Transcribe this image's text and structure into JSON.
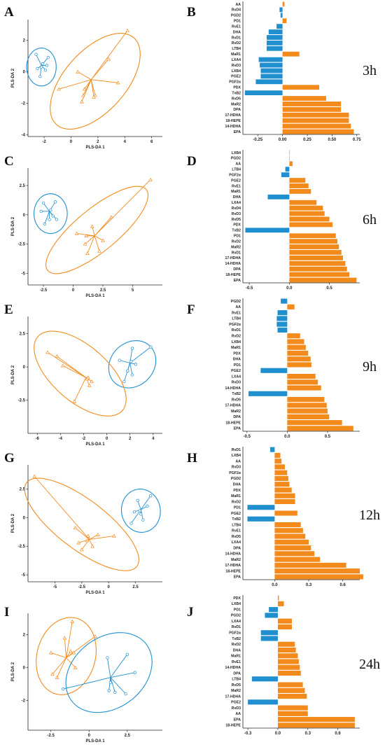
{
  "colors": {
    "orange": "#f28a1c",
    "blue": "#1f8fd0",
    "axis": "#222222"
  },
  "chart_data": [
    {
      "letter": "A",
      "type": "scatter",
      "xlabel": "PLS-DA 1",
      "ylabel": "PLS-DA 2",
      "xlim": [
        -3.2,
        6.8
      ],
      "ylim": [
        -4.1,
        3.3
      ],
      "xticks": [
        -2,
        0,
        2,
        4,
        6
      ],
      "yticks": [
        -4,
        -2,
        0,
        2
      ],
      "groups": [
        {
          "color": "blue",
          "marker": "circle",
          "centroid": [
            -2.2,
            0.4
          ],
          "points": [
            [
              -2.6,
              1.1
            ],
            [
              -1.7,
              0.9
            ],
            [
              -2.1,
              0.5
            ],
            [
              -2.5,
              0.2
            ],
            [
              -1.9,
              0.1
            ],
            [
              -2.3,
              -0.3
            ],
            [
              -2.2,
              0.3
            ],
            [
              -1.8,
              0.4
            ]
          ],
          "ellipse": {
            "cx": -2.2,
            "cy": 0.3,
            "rx": 1.1,
            "ry": 1.2,
            "angle": 0
          }
        },
        {
          "color": "orange",
          "marker": "triangle",
          "centroid": [
            1.5,
            -0.5
          ],
          "points": [
            [
              4.2,
              2.6
            ],
            [
              2.8,
              0.8
            ],
            [
              0.5,
              0.0
            ],
            [
              -0.9,
              -1.1
            ],
            [
              0.8,
              -1.9
            ],
            [
              1.8,
              -1.5
            ],
            [
              1.7,
              -1.6
            ],
            [
              3.5,
              -0.7
            ],
            [
              1.0,
              -1.1
            ],
            [
              0.9,
              -1.5
            ]
          ],
          "ellipse": {
            "cx": 1.8,
            "cy": -0.6,
            "rx": 4.0,
            "ry": 2.1,
            "angle": 40
          }
        }
      ]
    },
    {
      "letter": "B",
      "type": "bar",
      "time": "3h",
      "xlim": [
        -0.4,
        0.78
      ],
      "xticks": [
        -0.25,
        0,
        0.25,
        0.5,
        0.75
      ],
      "categories": [
        "AA",
        "RvD4",
        "PGD2",
        "PD1",
        "RvE1",
        "DHA",
        "RvD1",
        "RvD2",
        "LTB4",
        "MaR1",
        "LXA4",
        "RvD3",
        "LXB4",
        "PGE2",
        "PGF2α",
        "PDX",
        "TxB2",
        "RvD5",
        "MaR2",
        "DPA",
        "17-HDHA",
        "18-HEPE",
        "14-HDHA",
        "EPA"
      ],
      "values": [
        0.02,
        -0.03,
        -0.02,
        0.04,
        -0.06,
        -0.14,
        -0.16,
        -0.16,
        -0.16,
        0.17,
        -0.24,
        -0.23,
        -0.22,
        -0.22,
        -0.27,
        0.37,
        -0.38,
        0.44,
        0.59,
        0.59,
        0.67,
        0.67,
        0.69,
        0.72
      ]
    },
    {
      "letter": "C",
      "type": "scatter",
      "xlabel": "PLS-DA 1",
      "ylabel": "PLS-DA 2",
      "xlim": [
        -3.8,
        7.5
      ],
      "ylim": [
        -6.0,
        4.0
      ],
      "xticks": [
        -2.5,
        0,
        2.5,
        5
      ],
      "yticks": [
        -5,
        -2.5,
        0,
        2.5
      ],
      "groups": [
        {
          "color": "blue",
          "marker": "circle",
          "centroid": [
            -2.0,
            0.3
          ],
          "points": [
            [
              -2.5,
              1.0
            ],
            [
              -1.5,
              1.1
            ],
            [
              -2.7,
              0.3
            ],
            [
              -1.9,
              0.4
            ],
            [
              -2.0,
              -0.4
            ],
            [
              -1.4,
              -0.4
            ],
            [
              -2.4,
              -0.8
            ],
            [
              -1.7,
              -0.1
            ]
          ],
          "ellipse": {
            "cx": -1.9,
            "cy": 0.1,
            "rx": 1.4,
            "ry": 1.7,
            "angle": 0
          }
        },
        {
          "color": "orange",
          "marker": "triangle",
          "centroid": [
            1.8,
            -1.8
          ],
          "points": [
            [
              6.5,
              3.0
            ],
            [
              3.2,
              -0.2
            ],
            [
              0.3,
              -1.6
            ],
            [
              1.0,
              -2.5
            ],
            [
              1.2,
              -3.3
            ],
            [
              2.2,
              -3.1
            ],
            [
              2.5,
              -2.2
            ],
            [
              1.6,
              -1.0
            ],
            [
              1.1,
              -1.8
            ]
          ],
          "ellipse": {
            "cx": 2.0,
            "cy": -1.3,
            "rx": 5.4,
            "ry": 1.8,
            "angle": 40
          }
        }
      ]
    },
    {
      "letter": "D",
      "type": "bar",
      "time": "6h",
      "xlim": [
        -0.58,
        0.88
      ],
      "xticks": [
        -0.5,
        0,
        0.5
      ],
      "categories": [
        "LXB4",
        "PGD2",
        "AA",
        "LTB4",
        "PGF2α",
        "PGE2",
        "RvE1",
        "MaR1",
        "DHA",
        "LXA4",
        "RvD4",
        "RvD3",
        "RvD5",
        "PDX",
        "TxB2",
        "PD1",
        "RvD2",
        "MaR2",
        "RvD1",
        "17-HDHA",
        "14-HDHA",
        "DPA",
        "18-HEPE",
        "EPA"
      ],
      "values": [
        0.005,
        0.005,
        0.04,
        -0.05,
        -0.1,
        0.2,
        0.24,
        0.27,
        -0.27,
        0.34,
        0.42,
        0.44,
        0.5,
        0.54,
        -0.55,
        0.58,
        0.6,
        0.62,
        0.65,
        0.67,
        0.7,
        0.72,
        0.75,
        0.84
      ]
    },
    {
      "letter": "E",
      "type": "scatter",
      "xlabel": "PLS-DA 1",
      "ylabel": "PLS-DA 2",
      "xlim": [
        -6.8,
        4.8
      ],
      "ylim": [
        -5.0,
        3.8
      ],
      "xticks": [
        -6,
        -4,
        -2,
        0,
        2,
        4
      ],
      "yticks": [
        -2.5,
        0,
        2.5
      ],
      "groups": [
        {
          "color": "blue",
          "marker": "circle",
          "centroid": [
            2.0,
            0.3
          ],
          "points": [
            [
              3.8,
              1.5
            ],
            [
              2.2,
              1.4
            ],
            [
              1.1,
              0.5
            ],
            [
              2.1,
              0.4
            ],
            [
              1.8,
              -0.3
            ],
            [
              2.2,
              -0.6
            ],
            [
              1.5,
              -1.1
            ],
            [
              2.5,
              0.2
            ]
          ],
          "ellipse": {
            "cx": 2.2,
            "cy": 0.2,
            "rx": 2.1,
            "ry": 1.7,
            "angle": 25
          }
        },
        {
          "color": "orange",
          "marker": "triangle",
          "centroid": [
            -1.8,
            -0.8
          ],
          "points": [
            [
              -5.1,
              1.1
            ],
            [
              -4.3,
              0.8
            ],
            [
              -3.8,
              0.1
            ],
            [
              -1.6,
              -0.8
            ],
            [
              -1.5,
              -1.4
            ],
            [
              -1.3,
              -1.1
            ],
            [
              -2.8,
              -2.6
            ],
            [
              -1.7,
              -0.9
            ]
          ],
          "ellipse": {
            "cx": -2.3,
            "cy": -0.5,
            "rx": 4.6,
            "ry": 2.2,
            "angle": -35
          }
        }
      ]
    },
    {
      "letter": "F",
      "type": "bar",
      "time": "9h",
      "xlim": [
        -0.55,
        0.9
      ],
      "xticks": [
        -0.5,
        0,
        0.5
      ],
      "categories": [
        "PGD2",
        "AA",
        "RvE1",
        "LTB4",
        "PGF2α",
        "RvD1",
        "RvD2",
        "LXB4",
        "MaR1",
        "PDX",
        "DHA",
        "PD1",
        "PGE2",
        "LXA4",
        "RvD3",
        "14-HDHA",
        "TxB2",
        "RvD5",
        "17-HDHA",
        "MaR2",
        "DPA",
        "18-HEPE",
        "EPA"
      ],
      "values": [
        -0.08,
        0.09,
        -0.12,
        -0.13,
        -0.13,
        -0.12,
        0.16,
        0.21,
        0.23,
        0.26,
        0.29,
        0.3,
        -0.33,
        0.35,
        0.38,
        0.42,
        -0.48,
        0.46,
        0.49,
        0.5,
        0.52,
        0.68,
        0.82
      ]
    },
    {
      "letter": "G",
      "type": "scatter",
      "xlabel": "PLS-DA 1",
      "ylabel": "PLS-DA 2",
      "xlim": [
        -7.5,
        5.0
      ],
      "ylim": [
        -5.6,
        4.6
      ],
      "xticks": [
        -5,
        -2.5,
        0,
        2.5
      ],
      "yticks": [
        -5,
        -2.5,
        0,
        2.5
      ],
      "groups": [
        {
          "color": "blue",
          "marker": "circle",
          "centroid": [
            3.0,
            0.7
          ],
          "points": [
            [
              3.9,
              1.9
            ],
            [
              2.7,
              1.5
            ],
            [
              3.6,
              1.0
            ],
            [
              2.9,
              0.6
            ],
            [
              2.4,
              0.5
            ],
            [
              3.2,
              -0.2
            ],
            [
              2.1,
              -0.5
            ],
            [
              3.0,
              0.3
            ]
          ],
          "ellipse": {
            "cx": 3.0,
            "cy": 0.6,
            "rx": 1.8,
            "ry": 1.9,
            "angle": 20
          }
        },
        {
          "color": "orange",
          "marker": "triangle",
          "centroid": [
            -1.8,
            -1.9
          ],
          "points": [
            [
              -6.9,
              3.6
            ],
            [
              -3.1,
              -0.9
            ],
            [
              -1.0,
              -1.5
            ],
            [
              -1.9,
              -1.6
            ],
            [
              -2.8,
              -2.2
            ],
            [
              -1.5,
              -2.5
            ],
            [
              -2.5,
              -2.8
            ],
            [
              0.5,
              -1.6
            ],
            [
              -2.0,
              -2.0
            ]
          ],
          "ellipse": {
            "cx": -2.5,
            "cy": -0.6,
            "rx": 6.3,
            "ry": 2.2,
            "angle": -35
          }
        }
      ]
    },
    {
      "letter": "H",
      "type": "bar",
      "time": "12h",
      "xlim": [
        -0.28,
        0.75
      ],
      "xticks": [
        0.0,
        0.3,
        0.6
      ],
      "categories": [
        "RvD1",
        "LXB4",
        "AA",
        "RvD3",
        "PGF2α",
        "PGD2",
        "DHA",
        "PDX",
        "MaR1",
        "RvD2",
        "PD1",
        "PGE2",
        "TxB2",
        "LTB4",
        "RvE1",
        "RvD5",
        "LXA4",
        "DPA",
        "14-HDHA",
        "MaR2",
        "17-HDHA",
        "18-HEPE",
        "EPA"
      ],
      "values": [
        -0.04,
        0.05,
        0.06,
        0.09,
        0.11,
        0.12,
        0.13,
        0.15,
        0.18,
        0.18,
        -0.24,
        0.2,
        -0.24,
        0.23,
        0.25,
        0.27,
        0.3,
        0.32,
        0.35,
        0.4,
        0.63,
        0.75,
        0.78
      ]
    },
    {
      "letter": "I",
      "type": "scatter",
      "xlabel": "PLS-DA 1",
      "ylabel": "PLS-DA 2",
      "xlim": [
        -4.0,
        4.8
      ],
      "ylim": [
        -3.8,
        3.3
      ],
      "xticks": [
        -2.5,
        0,
        2.5
      ],
      "yticks": [
        -2,
        0,
        2
      ],
      "groups": [
        {
          "color": "orange",
          "marker": "triangle",
          "centroid": [
            -1.5,
            0.6
          ],
          "points": [
            [
              -1.1,
              2.8
            ],
            [
              0.4,
              1.9
            ],
            [
              -1.6,
              1.8
            ],
            [
              -2.5,
              0.9
            ],
            [
              -1.2,
              1.0
            ],
            [
              -2.4,
              -0.4
            ],
            [
              -2.1,
              -0.6
            ],
            [
              -0.9,
              0.0
            ],
            [
              -1.0,
              0.9
            ]
          ],
          "ellipse": {
            "cx": -1.5,
            "cy": 0.7,
            "rx": 1.9,
            "ry": 2.4,
            "angle": -20
          }
        },
        {
          "color": "blue",
          "marker": "circle",
          "centroid": [
            1.4,
            -0.6
          ],
          "points": [
            [
              2.5,
              0.8
            ],
            [
              1.2,
              0.6
            ],
            [
              3.0,
              -0.3
            ],
            [
              1.4,
              -0.9
            ],
            [
              1.7,
              -1.5
            ],
            [
              1.3,
              -1.4
            ],
            [
              -1.7,
              -1.3
            ],
            [
              2.4,
              -1.6
            ]
          ],
          "ellipse": {
            "cx": 1.3,
            "cy": -0.3,
            "rx": 3.0,
            "ry": 2.2,
            "angle": 30
          }
        }
      ]
    },
    {
      "letter": "J",
      "type": "bar",
      "time": "24h",
      "xlim": [
        -0.35,
        0.82
      ],
      "xticks": [
        -0.3,
        0.0,
        0.3,
        0.6
      ],
      "categories": [
        "PDX",
        "LXB4",
        "PD1",
        "PGD2",
        "LXA4",
        "RvD1",
        "PGF2α",
        "TxB2",
        "RvD2",
        "DHA",
        "MaR1",
        "RvE1",
        "14-HDHA",
        "DPA",
        "LTB4",
        "RvD5",
        "MaR2",
        "17-HDHA",
        "PGE2",
        "RvD3",
        "AA",
        "EPA",
        "18-HEPE"
      ],
      "values": [
        0.01,
        0.06,
        -0.09,
        -0.13,
        0.14,
        0.14,
        -0.17,
        -0.17,
        0.17,
        0.18,
        0.2,
        0.21,
        0.22,
        0.23,
        -0.26,
        0.25,
        0.27,
        0.29,
        -0.3,
        0.3,
        0.3,
        0.77,
        0.77
      ]
    }
  ]
}
